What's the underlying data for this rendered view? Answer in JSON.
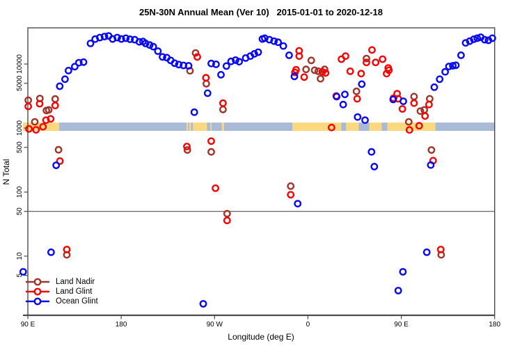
{
  "title": "25N-30N Annual Mean (Ver 10)   2015-01-01 to 2020-12-18",
  "chart_data": {
    "type": "scatter",
    "title": "25N-30N Annual Mean (Ver 10)   2015-01-01 to 2020-12-18",
    "xlabel": "Longitude (deg E)",
    "ylabel": "N Total",
    "x_axis": {
      "note": "axis spans 450 degrees east starting at 90E and wrapping past 180/0 back to 180",
      "range_deg": [
        90,
        540
      ]
    },
    "y_axis": {
      "scale": "log",
      "range": [
        1.2,
        36000
      ]
    },
    "ref_line_y": 50,
    "grid": "off",
    "legend_position": "bottom-left",
    "x_ticks": [
      {
        "deg": 90,
        "label": "90 E"
      },
      {
        "deg": 180,
        "label": "180"
      },
      {
        "deg": 270,
        "label": "90 W"
      },
      {
        "deg": 360,
        "label": "0"
      },
      {
        "deg": 450,
        "label": "90 E"
      },
      {
        "deg": 540,
        "label": "180"
      }
    ],
    "y_ticks": [
      {
        "value": 10000,
        "label": "10000"
      },
      {
        "value": 5000,
        "label": "5000"
      },
      {
        "value": 1000,
        "label": "1000"
      },
      {
        "value": 500,
        "label": "500"
      },
      {
        "value": 100,
        "label": "100"
      },
      {
        "value": 50,
        "label": "50"
      },
      {
        "value": 10,
        "label": "10"
      },
      {
        "value": 5,
        "label": "5"
      }
    ],
    "map_band": {
      "y_range_values": [
        905,
        1220
      ],
      "colors": {
        "land": "#FBD87E",
        "ocean": "#A8BAD6"
      },
      "segments": [
        [
          85.3,
          120.2,
          "land"
        ],
        [
          120.2,
          243.1,
          "ocean"
        ],
        [
          243.1,
          244.4,
          "land"
        ],
        [
          244.4,
          245.8,
          "ocean"
        ],
        [
          245.8,
          247.2,
          "land"
        ],
        [
          247.2,
          249.2,
          "ocean"
        ],
        [
          249.2,
          262.6,
          "land"
        ],
        [
          262.6,
          266.0,
          "ocean"
        ],
        [
          266.0,
          267.0,
          "land"
        ],
        [
          267.0,
          277.1,
          "ocean"
        ],
        [
          277.1,
          279.1,
          "land"
        ],
        [
          279.1,
          345.2,
          "ocean"
        ],
        [
          345.2,
          392.2,
          "land"
        ],
        [
          392.2,
          396.9,
          "ocean"
        ],
        [
          396.9,
          409.0,
          "land"
        ],
        [
          409.0,
          419.1,
          "ocean"
        ],
        [
          419.1,
          431.2,
          "land"
        ],
        [
          431.2,
          436.6,
          "ocean"
        ],
        [
          436.6,
          482.9,
          "land"
        ],
        [
          482.9,
          540.0,
          "ocean"
        ]
      ]
    },
    "series": [
      {
        "id": "land-nadir",
        "name": "Land Nadir",
        "color": "#A0352B",
        "points": [
          [
            90.4,
            2720
          ],
          [
            96.7,
            1250
          ],
          [
            101.6,
            2900
          ],
          [
            107.9,
            1880
          ],
          [
            110.1,
            1920
          ],
          [
            116.4,
            2850
          ],
          [
            119.6,
            458
          ],
          [
            127.6,
            10.5
          ],
          [
            243.8,
            455
          ],
          [
            246.3,
            7850
          ],
          [
            251.7,
            14900
          ],
          [
            262.0,
            4930
          ],
          [
            266.8,
            425
          ],
          [
            278.1,
            1950
          ],
          [
            282.1,
            46
          ],
          [
            343.4,
            124
          ],
          [
            358.2,
            8250
          ],
          [
            363.2,
            11400
          ],
          [
            366.5,
            8000
          ],
          [
            369.9,
            7700
          ],
          [
            372.1,
            5900
          ],
          [
            376.1,
            8250
          ],
          [
            406.8,
            3750
          ],
          [
            416.4,
            12200
          ],
          [
            457.2,
            1250
          ],
          [
            462.3,
            3100
          ],
          [
            468.4,
            1840
          ],
          [
            472.2,
            1920
          ],
          [
            477.4,
            2870
          ],
          [
            479.1,
            455
          ],
          [
            488.5,
            10.5
          ]
        ]
      },
      {
        "id": "land-glint",
        "name": "Land Glint",
        "color": "#F50505",
        "points": [
          [
            90.4,
            2180
          ],
          [
            91.1,
            970
          ],
          [
            97.9,
            940
          ],
          [
            101.4,
            2400
          ],
          [
            104.6,
            1050
          ],
          [
            107.5,
            1330
          ],
          [
            112.0,
            1390
          ],
          [
            116.4,
            2250
          ],
          [
            120.9,
            305
          ],
          [
            127.6,
            12.7
          ],
          [
            253.4,
            12900
          ],
          [
            261.7,
            6100
          ],
          [
            266.8,
            625
          ],
          [
            243.3,
            515
          ],
          [
            270.9,
            115
          ],
          [
            278.1,
            2450
          ],
          [
            282.1,
            36
          ],
          [
            343.4,
            91
          ],
          [
            347.5,
            7400
          ],
          [
            348.6,
            8150
          ],
          [
            351.5,
            16100
          ],
          [
            351.6,
            13300
          ],
          [
            356.4,
            6250
          ],
          [
            373.9,
            7550
          ],
          [
            377.0,
            7250
          ],
          [
            382.8,
            1020
          ],
          [
            387.3,
            3170
          ],
          [
            392.3,
            11900
          ],
          [
            396.3,
            13300
          ],
          [
            400.8,
            7700
          ],
          [
            407.5,
            2870
          ],
          [
            411.3,
            7100
          ],
          [
            416.4,
            10600
          ],
          [
            421.8,
            16600
          ],
          [
            425.3,
            10600
          ],
          [
            432.0,
            11900
          ],
          [
            435.9,
            7100
          ],
          [
            437.4,
            8700
          ],
          [
            438.1,
            8000
          ],
          [
            442.6,
            2930
          ],
          [
            446.0,
            3440
          ],
          [
            447.1,
            2870
          ],
          [
            451.1,
            1990
          ],
          [
            457.9,
            935
          ],
          [
            462.3,
            2450
          ],
          [
            467.3,
            1085
          ],
          [
            472.9,
            1540
          ],
          [
            476.7,
            2330
          ],
          [
            480.7,
            310
          ],
          [
            488.1,
            12.7
          ]
        ]
      },
      {
        "id": "ocean-glint",
        "name": "Ocean Glint",
        "color": "#0A0AF0",
        "points": [
          [
            120.7,
            4500
          ],
          [
            125.8,
            5800
          ],
          [
            129.2,
            7900
          ],
          [
            135.2,
            9100
          ],
          [
            139.2,
            10500
          ],
          [
            143.7,
            10700
          ],
          [
            150.4,
            21000
          ],
          [
            154.9,
            24500
          ],
          [
            159.4,
            25900
          ],
          [
            163.9,
            26900
          ],
          [
            167.9,
            27500
          ],
          [
            171.7,
            24600
          ],
          [
            176.2,
            25900
          ],
          [
            180.2,
            24600
          ],
          [
            184.5,
            25300
          ],
          [
            188.5,
            24400
          ],
          [
            193.0,
            24000
          ],
          [
            197.5,
            22200
          ],
          [
            201.0,
            22500
          ],
          [
            203.5,
            21000
          ],
          [
            207.5,
            19800
          ],
          [
            210.9,
            18700
          ],
          [
            215.4,
            15900
          ],
          [
            219.8,
            12900
          ],
          [
            223.9,
            12600
          ],
          [
            227.7,
            11400
          ],
          [
            231.5,
            10300
          ],
          [
            235.5,
            9800
          ],
          [
            240.0,
            9500
          ],
          [
            245.0,
            9400
          ],
          [
            250.5,
            1770
          ],
          [
            259.1,
            1.8
          ],
          [
            263.3,
            3500
          ],
          [
            266.8,
            10200
          ],
          [
            271.4,
            9900
          ],
          [
            276.2,
            6800
          ],
          [
            281.4,
            9300
          ],
          [
            285.9,
            11000
          ],
          [
            290.3,
            11500
          ],
          [
            293.7,
            10900
          ],
          [
            300.0,
            12400
          ],
          [
            304.5,
            13300
          ],
          [
            308.3,
            14400
          ],
          [
            312.1,
            15300
          ],
          [
            316.1,
            24600
          ],
          [
            318.4,
            25300
          ],
          [
            322.9,
            24000
          ],
          [
            327.3,
            22800
          ],
          [
            331.3,
            21900
          ],
          [
            336.3,
            19100
          ],
          [
            341.9,
            13700
          ],
          [
            347.0,
            6400
          ],
          [
            350.1,
            66
          ],
          [
            387.7,
            3100
          ],
          [
            394.0,
            2330
          ],
          [
            395.6,
            3360
          ],
          [
            407.9,
            1490
          ],
          [
            411.9,
            4850
          ],
          [
            415.1,
            1330
          ],
          [
            421.3,
            425
          ],
          [
            424.0,
            250
          ],
          [
            442.2,
            2800
          ],
          [
            452.0,
            2620
          ],
          [
            447.1,
            2.9
          ],
          [
            451.6,
            5.7
          ],
          [
            474.6,
            11.5
          ],
          [
            478.4,
            265
          ],
          [
            481.8,
            4350
          ],
          [
            487.0,
            5800
          ],
          [
            492.3,
            7550
          ],
          [
            495.9,
            9150
          ],
          [
            499.7,
            9400
          ],
          [
            502.6,
            9550
          ],
          [
            507.6,
            13700
          ],
          [
            512.0,
            21400
          ],
          [
            516.0,
            22800
          ],
          [
            519.9,
            24400
          ],
          [
            523.2,
            25300
          ],
          [
            526.6,
            26200
          ],
          [
            530.4,
            24000
          ],
          [
            534.0,
            23500
          ],
          [
            537.8,
            25300
          ],
          [
            117.3,
            262
          ],
          [
            112.4,
            11.5
          ],
          [
            85.5,
            5.7
          ]
        ]
      }
    ]
  }
}
